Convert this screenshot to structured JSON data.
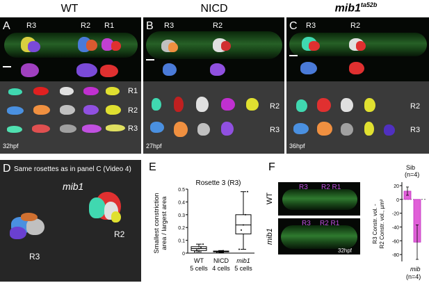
{
  "columns": {
    "wt": "WT",
    "nicd": "NICD",
    "mib1_base": "mib1",
    "mib1_sup": "ta52b"
  },
  "panels": {
    "A": {
      "label": "A",
      "r3": "R3",
      "r2": "R2",
      "r1": "R1",
      "stage": "32hpf",
      "rows": [
        "R1",
        "R2",
        "R3"
      ]
    },
    "B": {
      "label": "B",
      "r3": "R3",
      "r2": "R2",
      "stage": "27hpf",
      "rows": [
        "R2",
        "R3"
      ]
    },
    "C": {
      "label": "C",
      "r3": "R3",
      "r2": "R2",
      "stage": "36hpf",
      "rows": [
        "R2",
        "R3"
      ]
    },
    "D": {
      "label": "D",
      "caption": "Same rosettes as in panel C (Video 4)",
      "genotype": "mib1",
      "r3": "R3",
      "r2": "R2"
    },
    "F": {
      "label": "F",
      "wt": "WT",
      "mib1": "mib1",
      "r3": "R3",
      "r2r1": "R2 R1",
      "stage": "32hpf",
      "sib_label": "Sib",
      "sib_n": "(n=4)",
      "mib_label": "mib",
      "mib_n": "(n=4)",
      "ylabel1": "R3 Constr. vol. -",
      "ylabel2": "R2 Constr. vol., µm²"
    }
  },
  "chart_data": [
    {
      "type": "box",
      "panel": "E",
      "label": "E",
      "title": "Rosette 3 (R3)",
      "ylabel": "Smallest constriction area / largest area",
      "ylim": [
        0,
        0.5
      ],
      "yticks": [
        "0",
        "0.1",
        "0.2",
        "0.3",
        "0.4",
        "0.5"
      ],
      "categories": [
        "WT",
        "NICD",
        "mib1"
      ],
      "counts": [
        "5 cells",
        "4 cells",
        "5 cells"
      ],
      "boxes": [
        {
          "min": 0.01,
          "q1": 0.02,
          "median": 0.035,
          "q3": 0.05,
          "max": 0.07,
          "points": [
            0.01,
            0.025,
            0.035,
            0.045,
            0.07
          ]
        },
        {
          "min": 0.005,
          "q1": 0.01,
          "median": 0.012,
          "q3": 0.016,
          "max": 0.02,
          "points": [
            0.006,
            0.01,
            0.014,
            0.019
          ]
        },
        {
          "min": 0.03,
          "q1": 0.15,
          "median": 0.22,
          "q3": 0.3,
          "max": 0.48,
          "points": [
            0.03,
            0.18,
            0.22,
            0.3,
            0.48
          ]
        }
      ]
    },
    {
      "type": "bar",
      "panel": "F",
      "categories": [
        "Sib",
        "mib"
      ],
      "values": [
        12,
        -62
      ],
      "errors": [
        6,
        25
      ],
      "ylim": [
        -90,
        25
      ],
      "yticks": [
        "20",
        "0",
        "-20",
        "-40",
        "-60",
        "-80"
      ]
    }
  ]
}
